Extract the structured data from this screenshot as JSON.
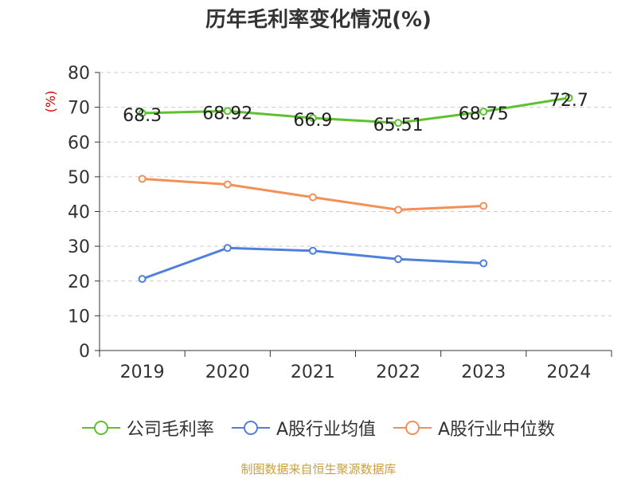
{
  "chart_data": {
    "type": "line",
    "title": "历年毛利率变化情况(%)",
    "ylabel": "(%)",
    "xlabel": "",
    "categories": [
      "2019",
      "2020",
      "2021",
      "2022",
      "2023",
      "2024"
    ],
    "ylim": [
      0,
      80
    ],
    "yticks": [
      0,
      10,
      20,
      30,
      40,
      50,
      60,
      70,
      80
    ],
    "grid": "horizontal-dashed",
    "legend_position": "bottom",
    "series": [
      {
        "name": "公司毛利率",
        "color": "#5dc22d",
        "values": [
          68.3,
          68.92,
          66.9,
          65.51,
          68.75,
          72.7
        ],
        "labels": [
          "68.3",
          "68.92",
          "66.9",
          "65.51",
          "68.75",
          "72.7"
        ]
      },
      {
        "name": "A股行业均值",
        "color": "#4f80dc",
        "values": [
          20.6,
          29.5,
          28.7,
          26.3,
          25.1,
          null
        ]
      },
      {
        "name": "A股行业中位数",
        "color": "#f29058",
        "values": [
          49.4,
          47.8,
          44.1,
          40.5,
          41.6,
          null
        ]
      }
    ]
  },
  "source_note": "制图数据来自恒生聚源数据库"
}
